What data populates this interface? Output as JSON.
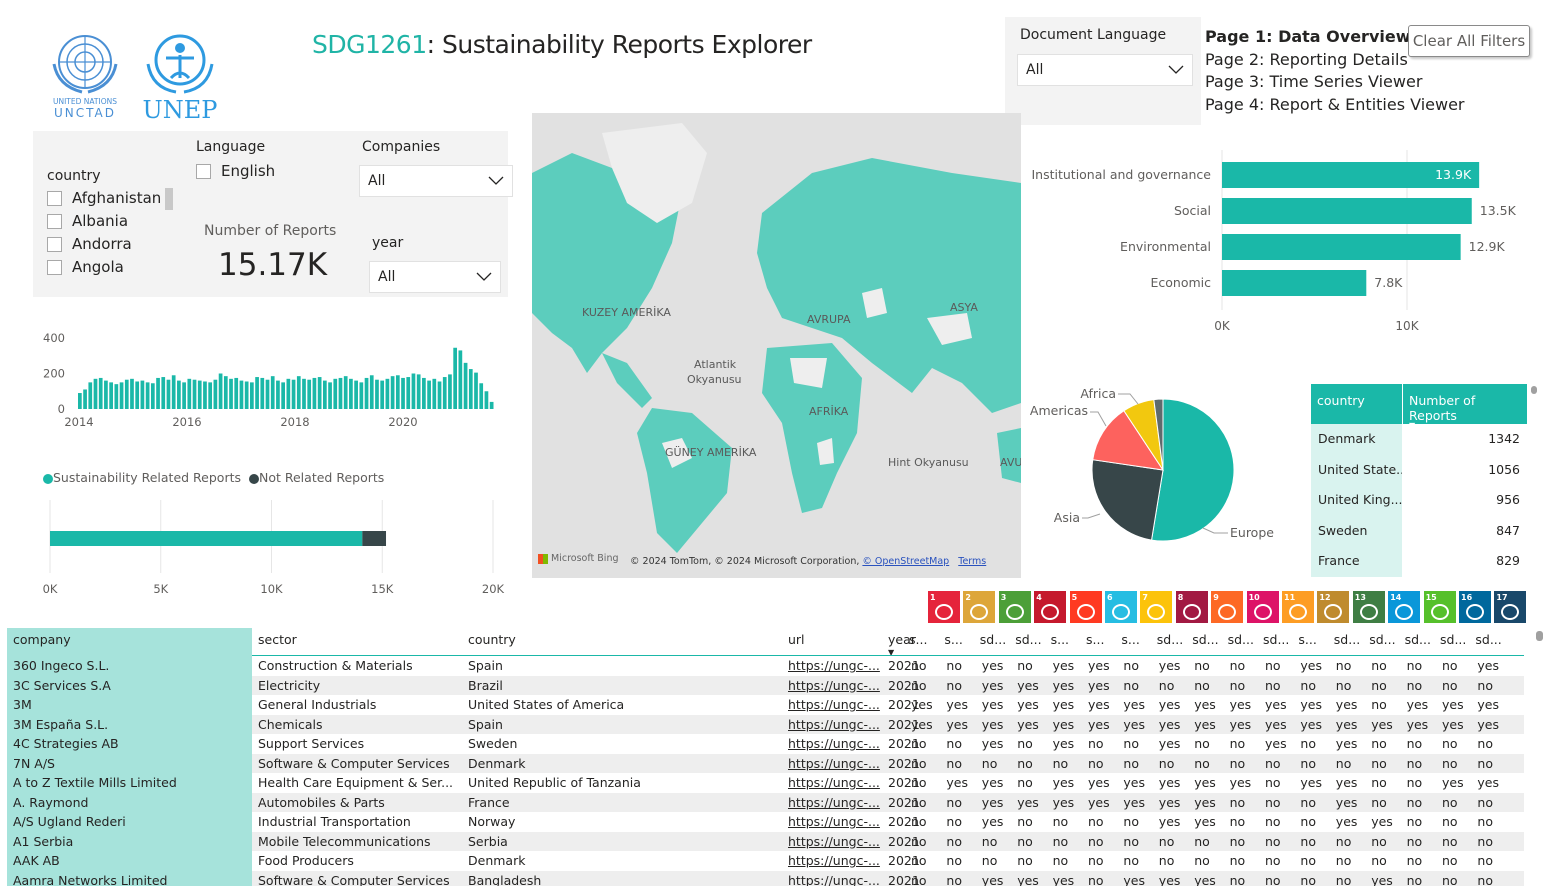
{
  "logos": {
    "unctad_line1": "UNITED NATIONS",
    "unctad_line2": "UNCTAD",
    "unep": "UNEP"
  },
  "title": {
    "code": "SDG1261",
    "rest": ": Sustainability Reports Explorer"
  },
  "doc_language": {
    "label": "Document Language",
    "value": "All"
  },
  "nav": {
    "p1": "Page 1: Data Overview",
    "p2": "Page 2: Reporting Details",
    "p3": "Page 3: Time Series Viewer",
    "p4": "Page 4: Report & Entities Viewer"
  },
  "clear_filters": "Clear All Filters",
  "filters": {
    "country_label": "country",
    "countries": [
      "Afghanistan",
      "Albania",
      "Andorra",
      "Angola"
    ],
    "language_label": "Language",
    "language_option": "English",
    "companies_label": "Companies",
    "companies_value": "All",
    "year_label": "year",
    "year_value": "All",
    "kpi_label": "Number of Reports",
    "kpi_value": "15.17K"
  },
  "colors": {
    "teal": "#1ab8a8",
    "dark": "#374649",
    "salmon": "#fd625e",
    "yellow": "#f2c80f",
    "grey": "#5f6b6d"
  },
  "chart_data": [
    {
      "type": "bar",
      "title": "",
      "x": "monthly 2014–2021",
      "ylim": [
        0,
        400
      ],
      "yticks": [
        "400",
        "200",
        "0"
      ],
      "xticks": [
        "2014",
        "2016",
        "2018",
        "2020"
      ],
      "values": [
        90,
        110,
        150,
        170,
        175,
        160,
        150,
        140,
        150,
        165,
        170,
        155,
        160,
        150,
        145,
        175,
        180,
        165,
        190,
        160,
        150,
        170,
        165,
        160,
        155,
        150,
        165,
        200,
        185,
        170,
        175,
        160,
        155,
        150,
        180,
        175,
        165,
        185,
        160,
        150,
        170,
        165,
        185,
        170,
        165,
        175,
        180,
        160,
        150,
        170,
        175,
        185,
        170,
        160,
        150,
        175,
        190,
        165,
        160,
        170,
        185,
        190,
        175,
        180,
        200,
        195,
        175,
        160,
        170,
        155,
        180,
        195,
        345,
        330,
        260,
        225,
        205,
        145,
        100,
        40
      ]
    },
    {
      "type": "bar",
      "orientation": "stacked-horizontal",
      "series": [
        {
          "name": "Sustainability Related Reports",
          "values": [
            14100
          ]
        },
        {
          "name": "Not Related Reports",
          "values": [
            1070
          ]
        }
      ],
      "xticks": [
        "0K",
        "5K",
        "10K",
        "15K",
        "20K"
      ],
      "xlim": [
        0,
        20000
      ],
      "legend": "top"
    },
    {
      "type": "bar",
      "orientation": "horizontal",
      "categories": [
        "Institutional and governance",
        "Social",
        "Environmental",
        "Economic"
      ],
      "values": [
        13900,
        13500,
        12900,
        7800
      ],
      "labels": [
        "13.9K",
        "13.5K",
        "12.9K",
        "7.8K"
      ],
      "xticks": [
        "0K",
        "10K"
      ],
      "xlim": [
        0,
        15000
      ]
    },
    {
      "type": "pie",
      "categories": [
        "Europe",
        "Asia",
        "Americas",
        "Africa",
        "Other"
      ],
      "values": [
        51,
        24,
        13,
        7,
        2
      ],
      "labels": [
        "Europe",
        "Asia",
        "Americas",
        "Africa"
      ]
    }
  ],
  "map": {
    "labels": [
      "KUZEY AMERİKA",
      "Atlantik",
      "Okyanusu",
      "AVRUPA",
      "ASYA",
      "AFRİKA",
      "GÜNEY AMERİKA",
      "Hint Okyanusu",
      "AVU"
    ],
    "attribution": "© 2024 TomTom, © 2024 Microsoft Corporation,",
    "osm": "© OpenStreetMap",
    "terms": "Terms",
    "bing": "Microsoft Bing"
  },
  "country_table": {
    "headers": [
      "country",
      "Number of Reports"
    ],
    "rows": [
      {
        "country": "Denmark",
        "n": "1342"
      },
      {
        "country": "United State...",
        "n": "1056"
      },
      {
        "country": "United King...",
        "n": "956"
      },
      {
        "country": "Sweden",
        "n": "847"
      },
      {
        "country": "France",
        "n": "829"
      }
    ]
  },
  "sdg_icons": [
    {
      "n": "1",
      "color": "#e5243b"
    },
    {
      "n": "2",
      "color": "#dda63a"
    },
    {
      "n": "3",
      "color": "#4c9f38"
    },
    {
      "n": "4",
      "color": "#c5192d"
    },
    {
      "n": "5",
      "color": "#ff3a21"
    },
    {
      "n": "6",
      "color": "#26bde2"
    },
    {
      "n": "7",
      "color": "#fcc30b"
    },
    {
      "n": "8",
      "color": "#a21942"
    },
    {
      "n": "9",
      "color": "#fd6925"
    },
    {
      "n": "10",
      "color": "#dd1367"
    },
    {
      "n": "11",
      "color": "#fd9d24"
    },
    {
      "n": "12",
      "color": "#bf8b2e"
    },
    {
      "n": "13",
      "color": "#3f7e44"
    },
    {
      "n": "14",
      "color": "#0a97d9"
    },
    {
      "n": "15",
      "color": "#56c02b"
    },
    {
      "n": "16",
      "color": "#00689d"
    },
    {
      "n": "17",
      "color": "#19486a"
    }
  ],
  "table": {
    "headers": [
      "company",
      "sector",
      "country",
      "url",
      "year",
      "s...",
      "s...",
      "sd...",
      "sd...",
      "s...",
      "s...",
      "s...",
      "sd...",
      "sd...",
      "sd...",
      "sd...",
      "s...",
      "sd...",
      "sd...",
      "sd...",
      "sd...",
      "sd..."
    ],
    "rows": [
      [
        "360 Ingeco S.L.",
        "Construction & Materials",
        "Spain",
        "https://ungc-...",
        "2021",
        "no",
        "no",
        "yes",
        "no",
        "yes",
        "yes",
        "no",
        "yes",
        "no",
        "no",
        "no",
        "yes",
        "no",
        "no",
        "no",
        "no",
        "yes"
      ],
      [
        "3C Services S.A",
        "Electricity",
        "Brazil",
        "https://ungc-...",
        "2021",
        "no",
        "no",
        "yes",
        "yes",
        "yes",
        "yes",
        "no",
        "no",
        "no",
        "no",
        "no",
        "no",
        "no",
        "no",
        "no",
        "no",
        "no"
      ],
      [
        "3M",
        "General Industrials",
        "United States of America",
        "https://ungc-...",
        "2021",
        "yes",
        "yes",
        "yes",
        "yes",
        "yes",
        "yes",
        "yes",
        "yes",
        "yes",
        "yes",
        "yes",
        "yes",
        "yes",
        "no",
        "yes",
        "yes",
        "yes"
      ],
      [
        "3M España S.L.",
        "Chemicals",
        "Spain",
        "https://ungc-...",
        "2021",
        "yes",
        "yes",
        "yes",
        "yes",
        "yes",
        "yes",
        "yes",
        "yes",
        "yes",
        "yes",
        "yes",
        "yes",
        "yes",
        "yes",
        "yes",
        "yes",
        "yes"
      ],
      [
        "4C Strategies AB",
        "Support Services",
        "Sweden",
        "https://ungc-...",
        "2021",
        "no",
        "no",
        "yes",
        "no",
        "yes",
        "no",
        "no",
        "yes",
        "no",
        "no",
        "yes",
        "no",
        "yes",
        "no",
        "no",
        "no",
        "no"
      ],
      [
        "7N A/S",
        "Software & Computer Services",
        "Denmark",
        "https://ungc-...",
        "2021",
        "no",
        "no",
        "no",
        "no",
        "no",
        "no",
        "no",
        "no",
        "no",
        "no",
        "no",
        "no",
        "no",
        "no",
        "no",
        "no",
        "no"
      ],
      [
        "A to Z Textile Mills Limited",
        "Health Care Equipment & Ser...",
        "United Republic of Tanzania",
        "https://ungc-...",
        "2021",
        "no",
        "yes",
        "yes",
        "no",
        "yes",
        "yes",
        "yes",
        "yes",
        "yes",
        "yes",
        "no",
        "yes",
        "yes",
        "no",
        "no",
        "yes",
        "yes"
      ],
      [
        "A. Raymond",
        "Automobiles & Parts",
        "France",
        "https://ungc-...",
        "2021",
        "no",
        "no",
        "yes",
        "yes",
        "yes",
        "yes",
        "yes",
        "yes",
        "yes",
        "no",
        "no",
        "no",
        "yes",
        "no",
        "no",
        "no",
        "no"
      ],
      [
        "A/S Ugland Rederi",
        "Industrial Transportation",
        "Norway",
        "https://ungc-...",
        "2021",
        "no",
        "no",
        "yes",
        "no",
        "no",
        "no",
        "no",
        "yes",
        "yes",
        "no",
        "no",
        "no",
        "yes",
        "yes",
        "no",
        "no",
        "no"
      ],
      [
        "A1 Serbia",
        "Mobile Telecommunications",
        "Serbia",
        "https://ungc-...",
        "2021",
        "no",
        "no",
        "no",
        "no",
        "no",
        "no",
        "no",
        "no",
        "no",
        "no",
        "no",
        "no",
        "no",
        "no",
        "no",
        "no",
        "no"
      ],
      [
        "AAK AB",
        "Food Producers",
        "Denmark",
        "https://ungc-...",
        "2021",
        "no",
        "no",
        "no",
        "no",
        "no",
        "no",
        "no",
        "no",
        "no",
        "no",
        "no",
        "no",
        "no",
        "no",
        "no",
        "no",
        "no"
      ],
      [
        "Aamra Networks Limited",
        "Software & Computer Services",
        "Bangladesh",
        "https://ungc-...",
        "2021",
        "no",
        "no",
        "yes",
        "yes",
        "yes",
        "no",
        "yes",
        "yes",
        "yes",
        "no",
        "no",
        "no",
        "no",
        "yes",
        "no",
        "no",
        "no"
      ]
    ]
  }
}
